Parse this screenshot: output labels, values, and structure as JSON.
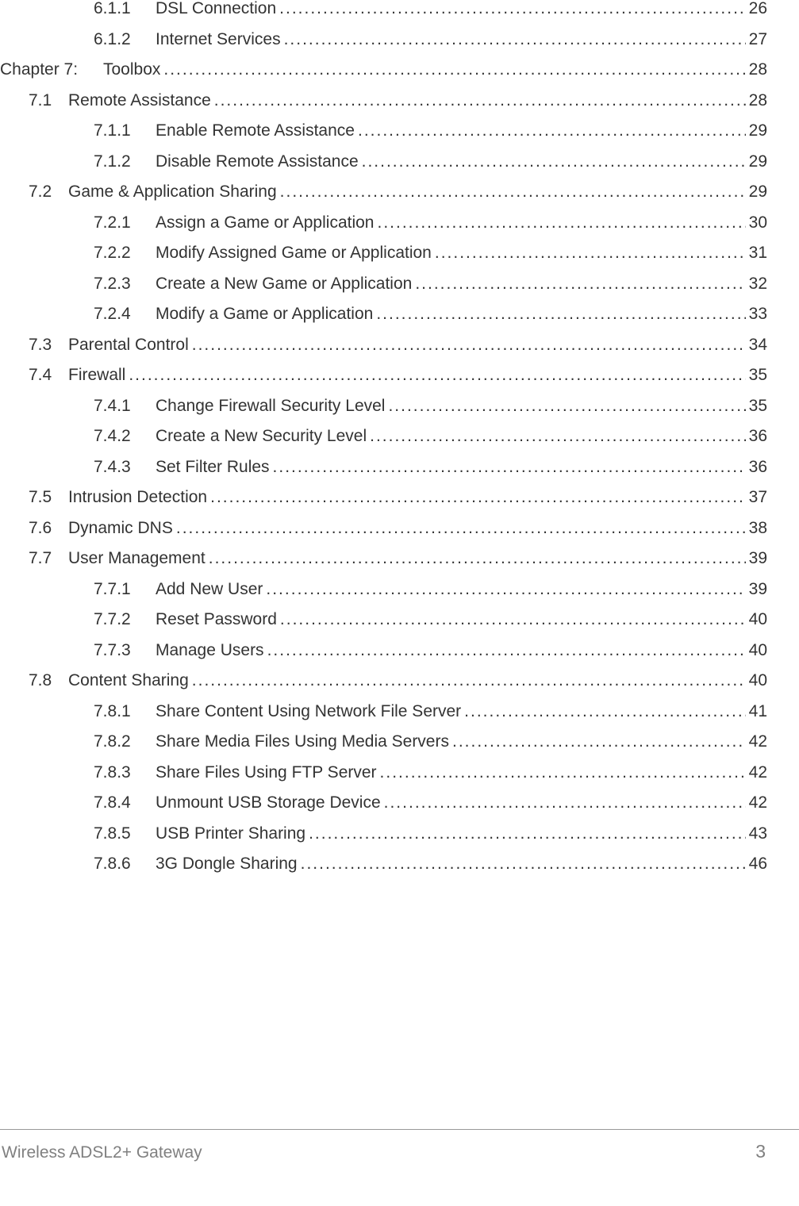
{
  "toc": {
    "entries": [
      {
        "level": "subsection",
        "number": "6.1.1",
        "title": "DSL Connection",
        "page": "26"
      },
      {
        "level": "subsection",
        "number": "6.1.2",
        "title": "Internet Services",
        "page": "27"
      },
      {
        "level": "chapter",
        "number": "Chapter 7:",
        "title": "Toolbox",
        "page": "28"
      },
      {
        "level": "section",
        "number": "7.1",
        "title": "Remote Assistance",
        "page": "28"
      },
      {
        "level": "subsection",
        "number": "7.1.1",
        "title": "Enable Remote Assistance",
        "page": "29"
      },
      {
        "level": "subsection",
        "number": "7.1.2",
        "title": "Disable Remote Assistance",
        "page": "29"
      },
      {
        "level": "section",
        "number": "7.2",
        "title": "Game & Application Sharing",
        "page": "29"
      },
      {
        "level": "subsection",
        "number": "7.2.1",
        "title": "Assign a Game or Application",
        "page": "30"
      },
      {
        "level": "subsection",
        "number": "7.2.2",
        "title": "Modify Assigned Game or Application",
        "page": "31"
      },
      {
        "level": "subsection",
        "number": "7.2.3",
        "title": "Create a New Game or Application",
        "page": "32"
      },
      {
        "level": "subsection",
        "number": "7.2.4",
        "title": "Modify a Game or Application",
        "page": "33"
      },
      {
        "level": "section",
        "number": "7.3",
        "title": "Parental Control",
        "page": "34"
      },
      {
        "level": "section",
        "number": "7.4",
        "title": "Firewall",
        "page": "35"
      },
      {
        "level": "subsection",
        "number": "7.4.1",
        "title": "Change Firewall Security Level",
        "page": "35"
      },
      {
        "level": "subsection",
        "number": "7.4.2",
        "title": "Create a New Security Level",
        "page": "36"
      },
      {
        "level": "subsection",
        "number": "7.4.3",
        "title": "Set Filter Rules",
        "page": "36"
      },
      {
        "level": "section",
        "number": "7.5",
        "title": "Intrusion Detection",
        "page": "37"
      },
      {
        "level": "section",
        "number": "7.6",
        "title": "Dynamic DNS",
        "page": "38"
      },
      {
        "level": "section",
        "number": "7.7",
        "title": "User Management",
        "page": "39"
      },
      {
        "level": "subsection",
        "number": "7.7.1",
        "title": "Add New User",
        "page": "39"
      },
      {
        "level": "subsection",
        "number": "7.7.2",
        "title": "Reset Password",
        "page": "40"
      },
      {
        "level": "subsection",
        "number": "7.7.3",
        "title": "Manage Users",
        "page": "40"
      },
      {
        "level": "section",
        "number": "7.8",
        "title": "Content Sharing",
        "page": "40"
      },
      {
        "level": "subsection",
        "number": "7.8.1",
        "title": "Share Content Using Network File Server",
        "page": "41"
      },
      {
        "level": "subsection",
        "number": "7.8.2",
        "title": "Share Media Files Using Media Servers",
        "page": "42"
      },
      {
        "level": "subsection",
        "number": "7.8.3",
        "title": "Share Files Using FTP Server",
        "page": "42"
      },
      {
        "level": "subsection",
        "number": "7.8.4",
        "title": "Unmount USB Storage Device",
        "page": "42"
      },
      {
        "level": "subsection",
        "number": "7.8.5",
        "title": "USB Printer Sharing",
        "page": "43"
      },
      {
        "level": "subsection",
        "number": "7.8.6",
        "title": "3G Dongle Sharing",
        "page": "46"
      }
    ]
  },
  "footer": {
    "title": "Wireless ADSL2+ Gateway",
    "page": "3"
  },
  "style": {
    "text_color": "#333333",
    "footer_text_color": "#808080",
    "background_color": "#ffffff",
    "divider_color": "#999999",
    "font_size_body": 21,
    "font_size_footer_title": 21,
    "font_size_footer_page": 23
  }
}
